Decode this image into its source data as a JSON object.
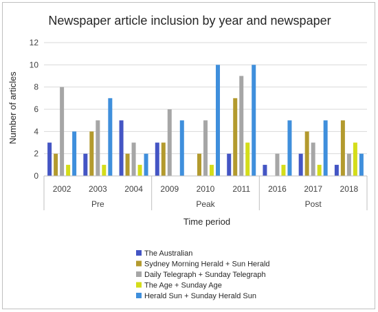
{
  "chart_data": {
    "type": "bar",
    "title": "Newspaper article inclusion by year and newspaper",
    "xlabel": "Time period",
    "ylabel": "Number of articles",
    "ylim": [
      0,
      12
    ],
    "yticks": [
      0,
      2,
      4,
      6,
      8,
      10,
      12
    ],
    "grid": true,
    "legend_position": "bottom",
    "categories": [
      "2002",
      "2003",
      "2004",
      "2009",
      "2010",
      "2011",
      "2016",
      "2017",
      "2018"
    ],
    "groups": [
      {
        "label": "Pre",
        "categories": [
          "2002",
          "2003",
          "2004"
        ]
      },
      {
        "label": "Peak",
        "categories": [
          "2009",
          "2010",
          "2011"
        ]
      },
      {
        "label": "Post",
        "categories": [
          "2016",
          "2017",
          "2018"
        ]
      }
    ],
    "series": [
      {
        "name": "The Australian",
        "color": "#4455c4",
        "values": [
          3,
          2,
          5,
          3,
          0,
          2,
          1,
          2,
          1
        ]
      },
      {
        "name": "Sydney Morning Herald + Sun Herald",
        "color": "#b39a2e",
        "values": [
          2,
          4,
          2,
          3,
          2,
          7,
          0,
          4,
          5
        ]
      },
      {
        "name": "Daily Telegraph + Sunday Telegraph",
        "color": "#a6a6a6",
        "values": [
          8,
          5,
          3,
          6,
          5,
          9,
          2,
          3,
          2
        ]
      },
      {
        "name": "The Age + Sunday Age",
        "color": "#d4dd1a",
        "values": [
          1,
          1,
          1,
          0,
          1,
          3,
          1,
          1,
          3
        ]
      },
      {
        "name": "Herald Sun + Sunday Herald Sun",
        "color": "#3f8fdc",
        "values": [
          4,
          7,
          2,
          5,
          10,
          10,
          5,
          5,
          2
        ]
      }
    ]
  }
}
